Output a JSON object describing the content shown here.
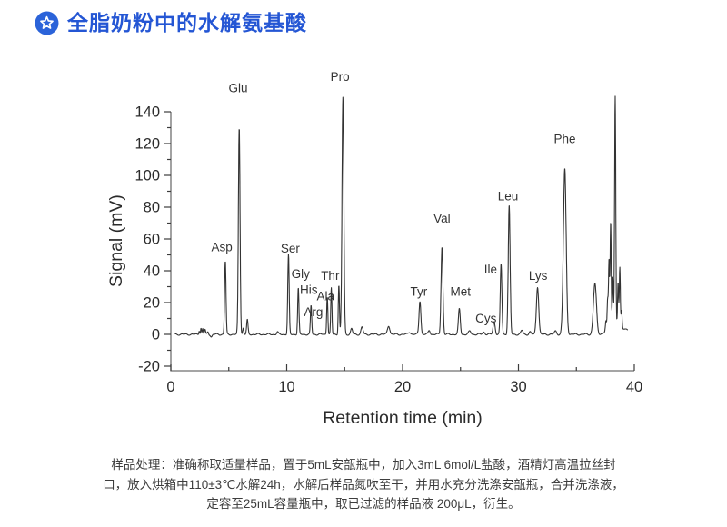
{
  "header": {
    "title": "全脂奶粉中的水解氨基酸",
    "title_color": "#2456d4",
    "icon_color": "#2b63d9",
    "icon": "star-badge-icon"
  },
  "chart_data": {
    "type": "line",
    "title": "",
    "xlabel": "Retention time (min)",
    "ylabel": "Signal (mV)",
    "xlim": [
      0,
      40
    ],
    "ylim": [
      -20,
      150
    ],
    "xticks": [
      0,
      10,
      20,
      30,
      40
    ],
    "xminor": [
      5,
      15,
      25,
      35
    ],
    "yticks": [
      -20,
      0,
      20,
      40,
      60,
      80,
      100,
      120,
      140
    ],
    "yminor": [
      -10,
      10,
      30,
      50,
      70,
      90,
      110,
      130
    ],
    "grid": false,
    "legend": "none",
    "line_color": "#333333",
    "axis_color": "#6f6f6f",
    "tick_color": "#3c3c3c",
    "text_color": "#2b2b2b",
    "peaks": [
      {
        "name": "Asp",
        "rt": 4.7,
        "mv": 46,
        "sigma": 0.06
      },
      {
        "name": "Glu",
        "rt": 5.9,
        "mv": 130,
        "sigma": 0.07
      },
      {
        "name": "Ser",
        "rt": 10.15,
        "mv": 50,
        "sigma": 0.06
      },
      {
        "name": "Gly",
        "rt": 11.0,
        "mv": 29,
        "sigma": 0.055
      },
      {
        "name": "His",
        "rt": 12.1,
        "mv": 18,
        "sigma": 0.055
      },
      {
        "name": "Arg",
        "rt": 13.5,
        "mv": 24,
        "sigma": 0.05
      },
      {
        "name": "Ala",
        "rt": 13.85,
        "mv": 29,
        "sigma": 0.05
      },
      {
        "name": "Thr",
        "rt": 14.5,
        "mv": 31,
        "sigma": 0.05
      },
      {
        "name": "Pro",
        "rt": 14.85,
        "mv": 149,
        "sigma": 0.08
      },
      {
        "name": "Tyr",
        "rt": 21.5,
        "mv": 21,
        "sigma": 0.08
      },
      {
        "name": "Val",
        "rt": 23.4,
        "mv": 55,
        "sigma": 0.08
      },
      {
        "name": "Met",
        "rt": 24.9,
        "mv": 16,
        "sigma": 0.08
      },
      {
        "name": "Cys",
        "rt": 27.9,
        "mv": 8,
        "sigma": 0.09
      },
      {
        "name": "Ile",
        "rt": 28.5,
        "mv": 44,
        "sigma": 0.07
      },
      {
        "name": "Leu",
        "rt": 29.2,
        "mv": 81,
        "sigma": 0.08
      },
      {
        "name": "Lys",
        "rt": 31.65,
        "mv": 30,
        "sigma": 0.1
      },
      {
        "name": "Phe",
        "rt": 34.0,
        "mv": 104,
        "sigma": 0.12
      }
    ],
    "bumps": [
      [
        2.45,
        2.5,
        0.04
      ],
      [
        2.6,
        4,
        0.04
      ],
      [
        2.75,
        3.5,
        0.04
      ],
      [
        2.95,
        3,
        0.05
      ],
      [
        3.2,
        1.5,
        0.05
      ],
      [
        3.5,
        -1.5,
        0.07
      ],
      [
        6.25,
        4,
        0.05
      ],
      [
        6.6,
        9,
        0.06
      ],
      [
        9.2,
        1.5,
        0.07
      ],
      [
        15.6,
        3.5,
        0.08
      ],
      [
        16.5,
        4.5,
        0.09
      ],
      [
        18.8,
        5.5,
        0.1
      ],
      [
        20.6,
        1.5,
        0.1
      ],
      [
        22.3,
        2.5,
        0.08
      ],
      [
        25.8,
        2,
        0.1
      ],
      [
        27.0,
        1.5,
        0.1
      ],
      [
        30.3,
        2.5,
        0.09
      ],
      [
        31.0,
        1.5,
        0.08
      ],
      [
        33.2,
        2,
        0.1
      ],
      [
        33.8,
        1.5,
        0.08
      ],
      [
        36.6,
        32,
        0.13
      ],
      [
        37.55,
        6,
        0.045
      ],
      [
        37.7,
        18,
        0.045
      ],
      [
        37.82,
        43,
        0.045
      ],
      [
        37.96,
        66,
        0.045
      ],
      [
        38.15,
        30,
        0.045
      ],
      [
        38.35,
        144,
        0.05
      ],
      [
        38.6,
        28,
        0.045
      ],
      [
        38.75,
        39,
        0.045
      ],
      [
        38.9,
        12,
        0.045
      ],
      [
        38.2,
        6,
        0.45
      ],
      [
        39.2,
        3,
        0.25
      ]
    ],
    "peak_labels": [
      {
        "text": "Glu",
        "x": 5.8,
        "y": 155
      },
      {
        "text": "Pro",
        "x": 14.6,
        "y": 162
      },
      {
        "text": "Asp",
        "x": 4.4,
        "y": 55
      },
      {
        "text": "Ser",
        "x": 10.3,
        "y": 54
      },
      {
        "text": "Gly",
        "x": 11.2,
        "y": 38
      },
      {
        "text": "His",
        "x": 11.9,
        "y": 28
      },
      {
        "text": "Arg",
        "x": 12.3,
        "y": 14
      },
      {
        "text": "Ala",
        "x": 13.35,
        "y": 24
      },
      {
        "text": "Thr",
        "x": 13.75,
        "y": 37
      },
      {
        "text": "Tyr",
        "x": 21.4,
        "y": 27
      },
      {
        "text": "Val",
        "x": 23.4,
        "y": 73
      },
      {
        "text": "Met",
        "x": 25.0,
        "y": 27
      },
      {
        "text": "Cys",
        "x": 27.2,
        "y": 10
      },
      {
        "text": "Ile",
        "x": 27.6,
        "y": 41
      },
      {
        "text": "Leu",
        "x": 29.1,
        "y": 87
      },
      {
        "text": "Lys",
        "x": 31.7,
        "y": 37
      },
      {
        "text": "Phe",
        "x": 34.0,
        "y": 123
      }
    ]
  },
  "footer": {
    "lines": [
      "样品处理：准确称取适量样品，置于5mL安瓿瓶中，加入3mL 6mol/L盐酸，酒精灯高温拉丝封",
      "口，放入烘箱中110±3℃水解24h，水解后样品氮吹至干，并用水充分洗涤安瓿瓶，合并洗涤液，",
      "定容至25mL容量瓶中，取已过滤的样品液 200μL，衍生。"
    ]
  }
}
